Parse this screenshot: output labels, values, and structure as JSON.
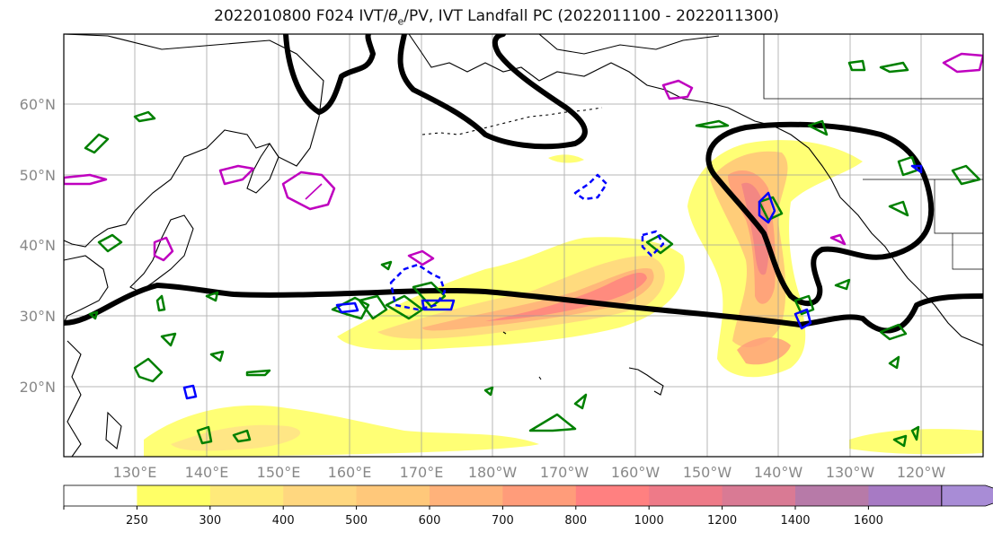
{
  "title": {
    "run": "2022010800 F024 IVT/",
    "theta": "θ",
    "theta_sub": "e",
    "rest": "/PV, IVT Landfall PC (2022011100 - 2022011300)"
  },
  "lat_labels": [
    "60°N",
    "50°N",
    "40°N",
    "30°N",
    "20°N"
  ],
  "lon_labels": [
    "130°E",
    "140°E",
    "150°E",
    "160°E",
    "170°E",
    "180°W",
    "170°W",
    "160°W",
    "150°W",
    "140°W",
    "130°W",
    "120°W"
  ],
  "colorbar": {
    "ticks": [
      "250",
      "300",
      "400",
      "500",
      "600",
      "700",
      "800",
      "1000",
      "1200",
      "1400",
      "1600"
    ],
    "colors": [
      "#ffffff",
      "#ffff66",
      "#ffea7a",
      "#ffd77f",
      "#ffc87a",
      "#ffb27a",
      "#ff9c7a",
      "#ff8080",
      "#ee7a88",
      "#d97a94",
      "#b77aa8",
      "#a77ac4",
      "#a88cd6"
    ]
  },
  "contour_colors": {
    "pc_line": "#000000",
    "theta_e": "#008000",
    "pv_negative": "#0000ff",
    "pv_high": "#bf00bf"
  }
}
